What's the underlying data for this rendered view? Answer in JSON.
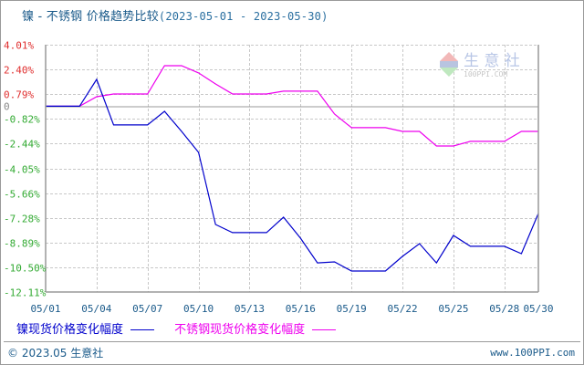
{
  "title": {
    "main": "镍 - 不锈钢 价格趋势比较",
    "range": "(2023-05-01 - 2023-05-30)"
  },
  "watermark": {
    "brand": "生 意 社",
    "domain": "100PPI.COM"
  },
  "legend": [
    {
      "label": "镍现货价格变化幅度",
      "color": "#0000cc"
    },
    {
      "label": "不锈钢现货价格变化幅度",
      "color": "#ee00ee"
    }
  ],
  "footer": {
    "copyright": "© 2023.05 生意社",
    "site": "www.100PPI.com"
  },
  "colors": {
    "positive_tick": "#e03030",
    "negative_tick": "#33aa33",
    "zero_tick": "#888888",
    "grid": "#c8c8c8",
    "axis": "#999999"
  },
  "chart_data": {
    "type": "line",
    "title": "镍 - 不锈钢 价格趋势比较(2023-05-01 - 2023-05-30)",
    "xlabel": "",
    "ylabel": "",
    "ylim": [
      -12.11,
      4.01
    ],
    "yticks": [
      "4.01%",
      "2.40%",
      "0.79%",
      "0",
      "-0.82%",
      "-2.44%",
      "-4.05%",
      "-5.66%",
      "-7.28%",
      "-8.89%",
      "-10.50%",
      "-12.11%"
    ],
    "ytick_values": [
      4.01,
      2.4,
      0.79,
      0,
      -0.82,
      -2.44,
      -4.05,
      -5.66,
      -7.28,
      -8.89,
      -10.5,
      -12.11
    ],
    "xticks": [
      "05/01",
      "05/04",
      "05/07",
      "05/10",
      "05/13",
      "05/16",
      "05/19",
      "05/22",
      "05/25",
      "05/28",
      "05/30"
    ],
    "grid": true,
    "legend_position": "bottom",
    "x": [
      "05/01",
      "05/02",
      "05/03",
      "05/04",
      "05/05",
      "05/06",
      "05/07",
      "05/08",
      "05/09",
      "05/10",
      "05/11",
      "05/12",
      "05/13",
      "05/14",
      "05/15",
      "05/16",
      "05/17",
      "05/18",
      "05/19",
      "05/20",
      "05/21",
      "05/22",
      "05/23",
      "05/24",
      "05/25",
      "05/26",
      "05/27",
      "05/28",
      "05/29",
      "05/30"
    ],
    "series": [
      {
        "name": "镍现货价格变化幅度",
        "color": "#0000cc",
        "values": [
          0,
          0,
          0,
          1.75,
          -1.22,
          -1.22,
          -1.22,
          -0.33,
          -1.64,
          -3.01,
          -7.71,
          -8.24,
          -8.24,
          -8.24,
          -7.23,
          -8.6,
          -10.21,
          -10.15,
          -10.74,
          -10.74,
          -10.74,
          -9.79,
          -8.96,
          -10.21,
          -8.42,
          -9.13,
          -9.13,
          -9.13,
          -9.61,
          -6.99
        ]
      },
      {
        "name": "不锈钢现货价格变化幅度",
        "color": "#ee00ee",
        "values": [
          0,
          0,
          0,
          0.62,
          0.8,
          0.8,
          0.8,
          2.64,
          2.64,
          2.17,
          1.45,
          0.8,
          0.8,
          0.8,
          0.98,
          0.98,
          0.98,
          -0.51,
          -1.4,
          -1.4,
          -1.4,
          -1.64,
          -1.64,
          -2.59,
          -2.59,
          -2.29,
          -2.29,
          -2.29,
          -1.64,
          -1.64
        ]
      }
    ]
  }
}
